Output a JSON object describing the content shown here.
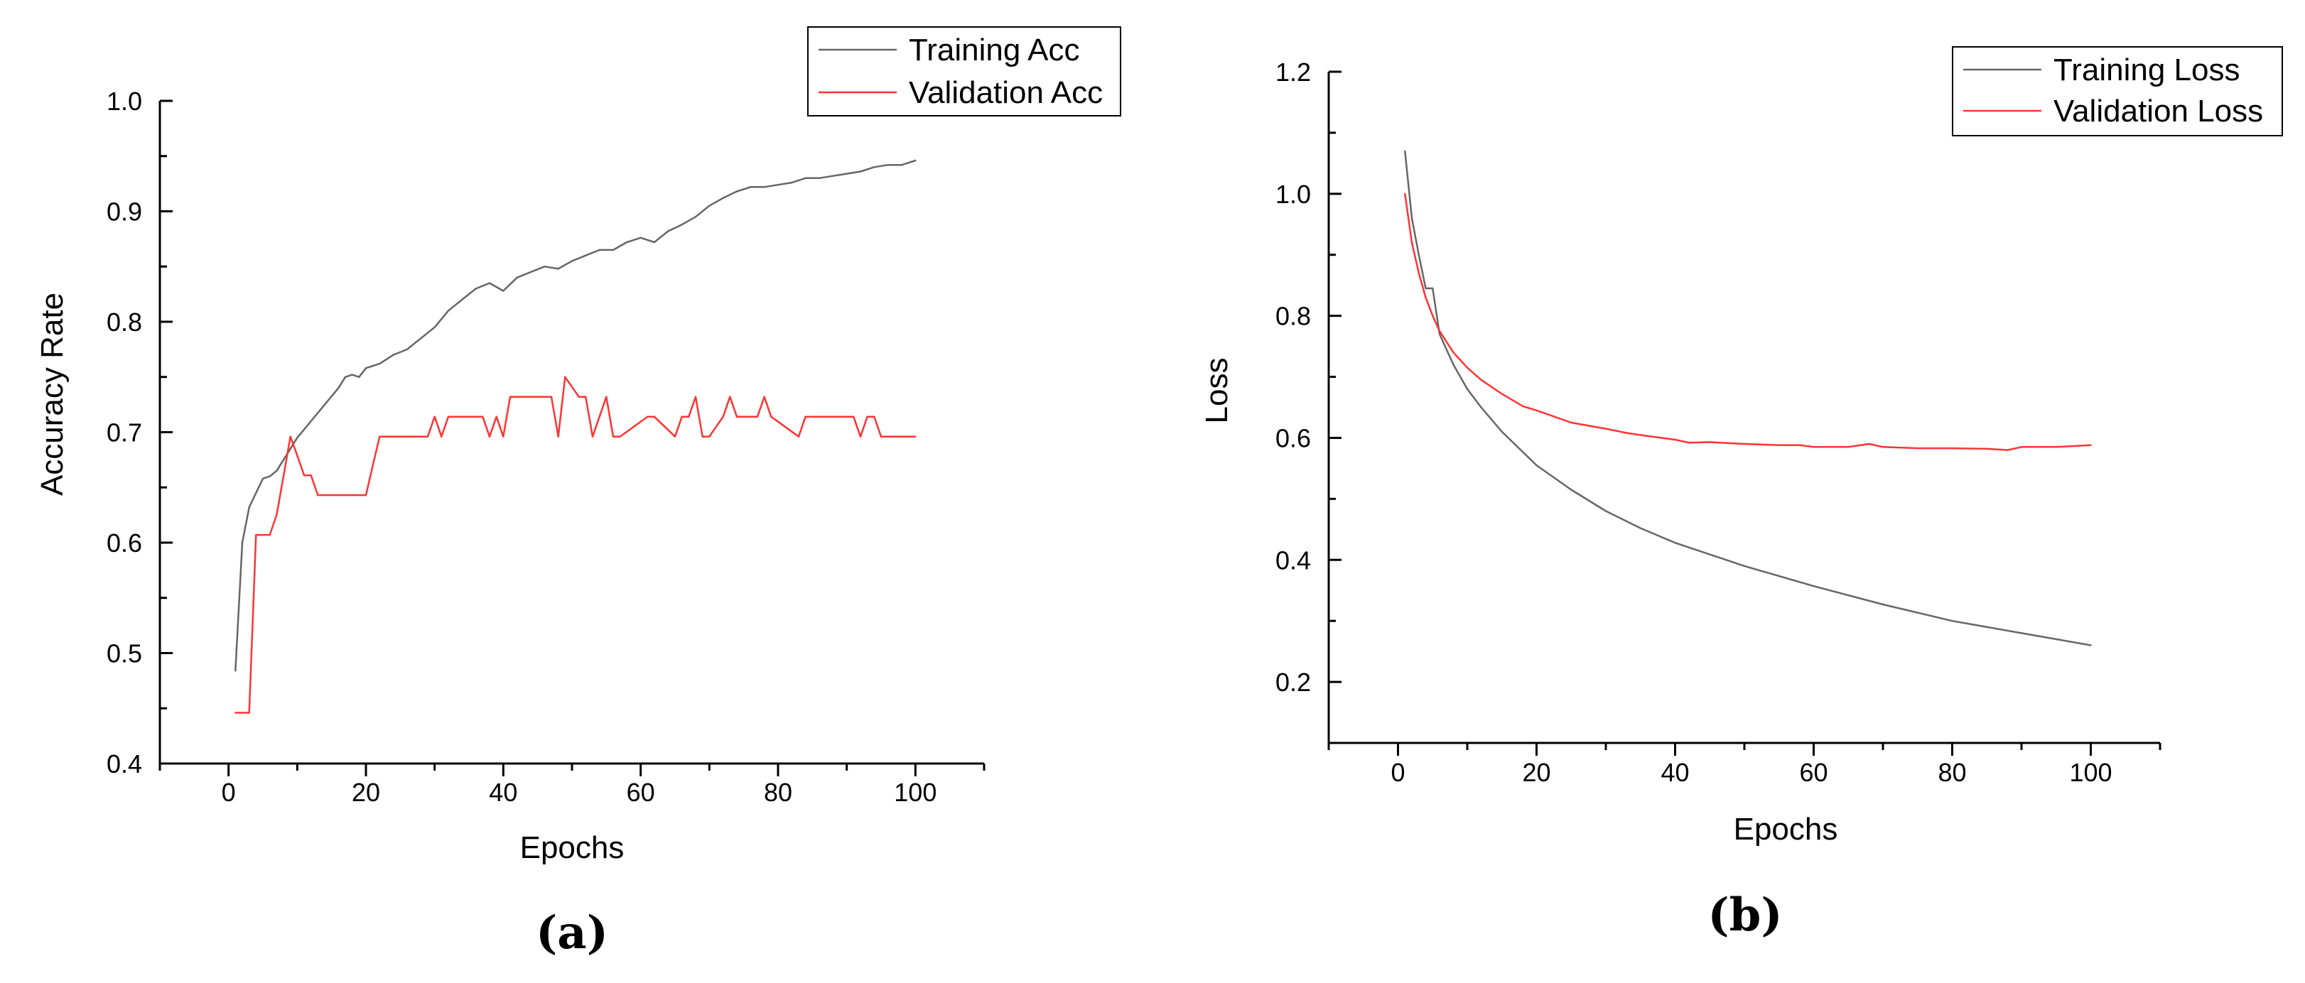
{
  "chart_data": [
    {
      "type": "line",
      "panel": "a",
      "caption": "(a)",
      "title": "",
      "xlabel": "Epochs",
      "ylabel": "Accuracy Rate",
      "xlim": [
        -10,
        110
      ],
      "ylim": [
        0.4,
        1.0
      ],
      "xticks": [
        0,
        20,
        40,
        60,
        80,
        100
      ],
      "yticks": [
        0.4,
        0.5,
        0.6,
        0.7,
        0.8,
        0.9,
        1.0
      ],
      "xtick_labels": [
        "0",
        "20",
        "40",
        "60",
        "80",
        "100"
      ],
      "ytick_labels": [
        "0.4",
        "0.5",
        "0.6",
        "0.7",
        "0.8",
        "0.9",
        "1.0"
      ],
      "grid": false,
      "legend_position": "top-right",
      "series": [
        {
          "name": "Training Acc",
          "color": "#666666",
          "x": [
            1,
            2,
            3,
            4,
            5,
            6,
            7,
            8,
            9,
            10,
            12,
            14,
            16,
            17,
            18,
            19,
            20,
            22,
            24,
            26,
            28,
            30,
            32,
            34,
            36,
            38,
            40,
            42,
            44,
            46,
            48,
            50,
            52,
            54,
            56,
            58,
            60,
            62,
            64,
            66,
            68,
            70,
            72,
            74,
            76,
            78,
            80,
            82,
            84,
            86,
            88,
            90,
            92,
            94,
            96,
            98,
            100
          ],
          "y": [
            0.484,
            0.6,
            0.632,
            0.645,
            0.658,
            0.66,
            0.665,
            0.675,
            0.685,
            0.695,
            0.71,
            0.725,
            0.74,
            0.75,
            0.752,
            0.75,
            0.758,
            0.762,
            0.77,
            0.775,
            0.785,
            0.795,
            0.81,
            0.82,
            0.83,
            0.835,
            0.828,
            0.84,
            0.845,
            0.85,
            0.848,
            0.855,
            0.86,
            0.865,
            0.865,
            0.872,
            0.876,
            0.872,
            0.882,
            0.888,
            0.895,
            0.905,
            0.912,
            0.918,
            0.922,
            0.922,
            0.924,
            0.926,
            0.93,
            0.93,
            0.932,
            0.934,
            0.936,
            0.94,
            0.942,
            0.942,
            0.946
          ]
        },
        {
          "name": "Validation Acc",
          "color": "#ff3333",
          "x": [
            1,
            3,
            4,
            6,
            7,
            8,
            9,
            10,
            11,
            12,
            13,
            16,
            20,
            21,
            22,
            29,
            30,
            31,
            32,
            37,
            38,
            39,
            40,
            41,
            47,
            48,
            49,
            51,
            52,
            53,
            54,
            55,
            56,
            57,
            61,
            62,
            65,
            66,
            67,
            68,
            69,
            70,
            72,
            73,
            74,
            77,
            78,
            79,
            83,
            84,
            91,
            92,
            93,
            94,
            95,
            100
          ],
          "y": [
            0.446,
            0.446,
            0.607,
            0.607,
            0.625,
            0.66,
            0.696,
            0.679,
            0.661,
            0.661,
            0.643,
            0.643,
            0.643,
            0.67,
            0.696,
            0.696,
            0.714,
            0.696,
            0.714,
            0.714,
            0.696,
            0.714,
            0.696,
            0.732,
            0.732,
            0.696,
            0.75,
            0.732,
            0.732,
            0.696,
            0.714,
            0.732,
            0.696,
            0.696,
            0.714,
            0.714,
            0.696,
            0.714,
            0.714,
            0.732,
            0.696,
            0.696,
            0.714,
            0.732,
            0.714,
            0.714,
            0.732,
            0.714,
            0.696,
            0.714,
            0.714,
            0.696,
            0.714,
            0.714,
            0.696,
            0.696
          ]
        }
      ]
    },
    {
      "type": "line",
      "panel": "b",
      "caption": "(b)",
      "title": "",
      "xlabel": "Epochs",
      "ylabel": "Loss",
      "xlim": [
        -10,
        110
      ],
      "ylim": [
        0.1,
        1.2
      ],
      "xticks": [
        0,
        20,
        40,
        60,
        80,
        100
      ],
      "yticks": [
        0.2,
        0.4,
        0.6,
        0.8,
        1.0,
        1.2
      ],
      "xtick_labels": [
        "0",
        "20",
        "40",
        "60",
        "80",
        "100"
      ],
      "ytick_labels": [
        "0.2",
        "0.4",
        "0.6",
        "0.8",
        "1.0",
        "1.2"
      ],
      "grid": false,
      "legend_position": "top-right",
      "series": [
        {
          "name": "Training Loss",
          "color": "#666666",
          "x": [
            1,
            2,
            3,
            4,
            5,
            6,
            8,
            10,
            12,
            15,
            20,
            25,
            30,
            35,
            40,
            50,
            60,
            70,
            80,
            90,
            100
          ],
          "y": [
            1.07,
            0.96,
            0.9,
            0.845,
            0.845,
            0.77,
            0.72,
            0.68,
            0.65,
            0.61,
            0.555,
            0.515,
            0.48,
            0.452,
            0.428,
            0.39,
            0.357,
            0.327,
            0.3,
            0.28,
            0.26
          ]
        },
        {
          "name": "Validation Loss",
          "color": "#ff3333",
          "x": [
            1,
            2,
            3,
            4,
            5,
            6,
            8,
            10,
            12,
            15,
            18,
            20,
            25,
            30,
            33,
            36,
            40,
            42,
            45,
            50,
            55,
            58,
            60,
            65,
            68,
            70,
            75,
            80,
            85,
            88,
            90,
            95,
            100
          ],
          "y": [
            1.0,
            0.92,
            0.87,
            0.83,
            0.8,
            0.775,
            0.74,
            0.715,
            0.695,
            0.672,
            0.652,
            0.645,
            0.625,
            0.615,
            0.608,
            0.603,
            0.597,
            0.592,
            0.593,
            0.59,
            0.588,
            0.588,
            0.585,
            0.585,
            0.59,
            0.585,
            0.583,
            0.583,
            0.582,
            0.58,
            0.585,
            0.585,
            0.588
          ]
        }
      ]
    }
  ]
}
